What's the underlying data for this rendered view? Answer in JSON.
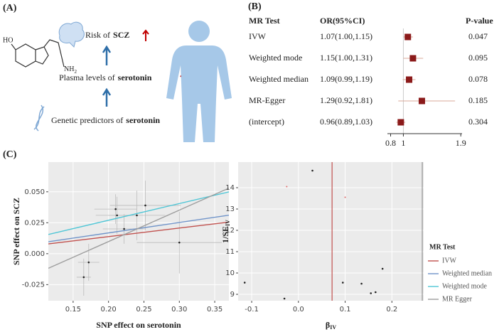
{
  "panel_a": {
    "label": "(A)",
    "rows": [
      {
        "text": "Risk of",
        "bold": "SCZ"
      },
      {
        "text": "Plasma levels of",
        "bold": "serotonin"
      },
      {
        "text": "Genetic predictors of",
        "bold": "serotonin"
      }
    ],
    "molecule": {
      "hydroxyl": "HO",
      "amine": "NH",
      "amine_sub": "2"
    }
  },
  "panel_b_label": "(B)",
  "panel_c_label": "(C)",
  "chart_data": [
    {
      "type": "forest",
      "columns": [
        "MR Test",
        "OR(95%CI)",
        "P-value"
      ],
      "categories": [
        "IVW",
        "Weighted mode",
        "Weighted median",
        "MR-Egger",
        "(intercept)"
      ],
      "values": [
        1.07,
        1.15,
        1.09,
        1.29,
        0.96
      ],
      "lower": [
        1.0,
        1.0,
        0.99,
        0.92,
        0.89
      ],
      "upper": [
        1.15,
        1.31,
        1.19,
        1.81,
        1.03
      ],
      "value_labels": [
        "1.07(1.00,1.15)",
        "1.15(1.00,1.31)",
        "1.09(0.99,1.19)",
        "1.29(0.92,1.81)",
        "0.96(0.89,1.03)"
      ],
      "p_values": [
        0.047,
        0.095,
        0.078,
        0.185,
        0.304
      ],
      "xlim": [
        0.75,
        1.92
      ],
      "xticks": [
        0.8,
        1,
        1.9
      ],
      "refline": 1,
      "color": "#8b1a1a",
      "ci_color": "#d9a89a"
    },
    {
      "type": "scatter",
      "xlabel": "SNP effect on serotonin",
      "ylabel": "SNP effect on SCZ",
      "x": [
        0.165,
        0.172,
        0.21,
        0.212,
        0.222,
        0.24,
        0.252,
        0.3
      ],
      "y": [
        -0.019,
        -0.007,
        0.036,
        0.031,
        0.02,
        0.031,
        0.039,
        0.009
      ],
      "x_err": [
        0.01,
        0.015,
        0.03,
        0.03,
        0.03,
        0.04,
        0.05,
        0.06
      ],
      "y_err": [
        0.015,
        0.015,
        0.012,
        0.015,
        0.012,
        0.02,
        0.02,
        0.025
      ],
      "xlim": [
        0.115,
        0.37
      ],
      "xticks": [
        0.15,
        {
          "value": 0.2,
          "label": "0.20"
        },
        0.25,
        {
          "value": 0.3,
          "label": "0.30"
        },
        0.35
      ],
      "ylim": [
        -0.038,
        0.074
      ],
      "yticks": [
        -0.025,
        {
          "value": 0,
          "label": "0.000"
        },
        0.025,
        {
          "value": 0.05,
          "label": "0.050"
        }
      ],
      "lines": [
        {
          "name": "IVW",
          "color": "#c0504d",
          "slope": 0.069,
          "intercept": 0
        },
        {
          "name": "Weighted median",
          "color": "#7094c9",
          "slope": 0.084,
          "intercept": 0
        },
        {
          "name": "Weighted mode",
          "color": "#4fc6d6",
          "slope": 0.135,
          "intercept": 0
        },
        {
          "name": "MR Egger",
          "color": "#9e9e9e",
          "slope": 0.254,
          "intercept": -0.041
        }
      ],
      "legend_title": "MR Test",
      "point_color": "#222",
      "grid": true
    },
    {
      "type": "funnel",
      "xlabel": "β",
      "xlabel_sub": "IV",
      "ylabel": "1/SE",
      "ylabel_sub": "IV",
      "x": [
        -0.115,
        -0.03,
        0.03,
        0.095,
        0.135,
        0.155,
        0.165,
        0.18
      ],
      "y": [
        9.55,
        8.8,
        14.8,
        9.55,
        9.5,
        9.05,
        9.1,
        10.2
      ],
      "highlight_x": [
        -0.025,
        0.1
      ],
      "highlight_y": [
        14.05,
        13.55
      ],
      "xlim": [
        -0.129,
        0.268
      ],
      "xticks": [
        -0.1,
        {
          "value": 0,
          "label": "0.0"
        },
        0.1,
        0.2
      ],
      "ylim": [
        8.7,
        15.2
      ],
      "yticks": [
        9,
        10,
        11,
        12,
        13,
        14
      ],
      "vlines": [
        0.072,
        0.265
      ],
      "vline_colors": [
        "#c0504d",
        "#909090"
      ],
      "point_color": "#222",
      "highlight_color": "#e06666",
      "grid": true
    }
  ]
}
